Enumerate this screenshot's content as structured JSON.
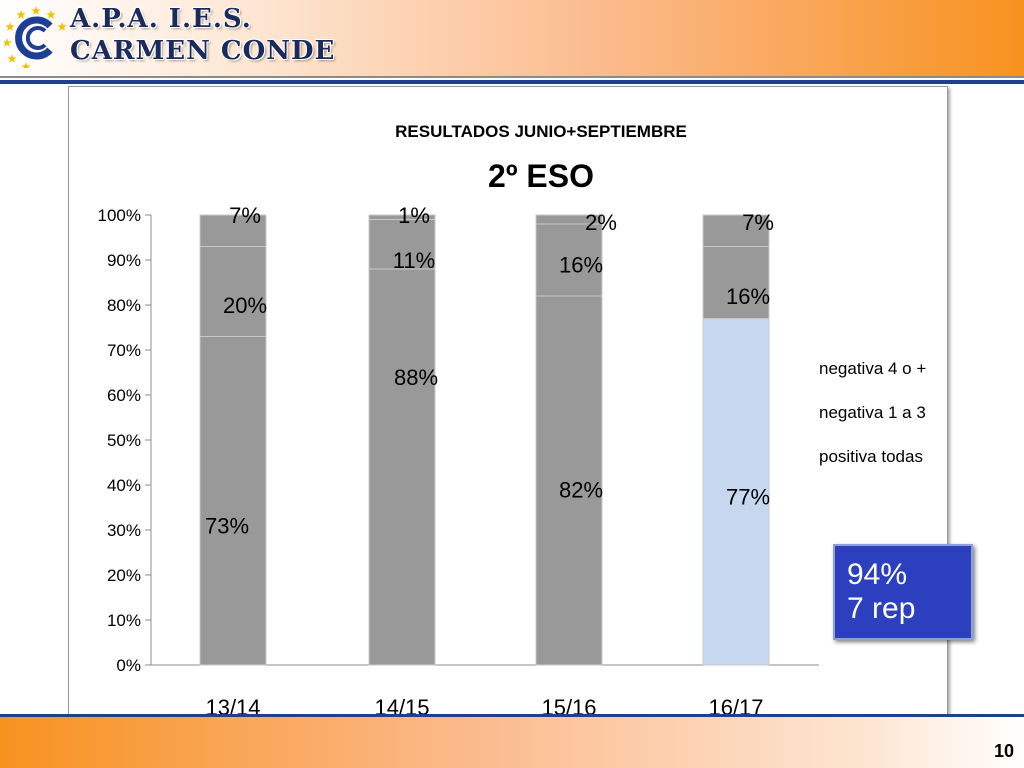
{
  "header": {
    "org_line1": "A.P.A.  I.E.S.",
    "org_line2": "CARMEN CONDE"
  },
  "footer": {
    "page_number": "10"
  },
  "callout": {
    "line1": "94%",
    "line2": "7 rep",
    "background": "#2b3fbf"
  },
  "colors": {
    "header_orange": "#f7921f",
    "rule_blue": "#1f3f8f",
    "bar_grey": "#999999",
    "bar_highlight": "#c5d8f0"
  },
  "chart_data": {
    "type": "bar",
    "stacked": true,
    "title": "RESULTADOS JUNIO+SEPTIEMBRE",
    "subtitle": "2º ESO",
    "categories": [
      "13/14",
      "14/15",
      "15/16",
      "16/17"
    ],
    "highlight_category": "16/17",
    "series": [
      {
        "name": "positiva todas",
        "values": [
          73,
          88,
          82,
          77
        ],
        "labels": [
          "73%",
          "88%",
          "82%",
          "77%"
        ]
      },
      {
        "name": "negativa 1 a 3",
        "values": [
          20,
          11,
          16,
          16
        ],
        "labels": [
          "20%",
          "11%",
          "16%",
          "16%"
        ]
      },
      {
        "name": "negativa 4 o +",
        "values": [
          7,
          1,
          2,
          7
        ],
        "labels": [
          "7%",
          "1%",
          "2%",
          "7%"
        ]
      }
    ],
    "ylim": [
      0,
      100
    ],
    "yticks": [
      "0%",
      "10%",
      "20%",
      "30%",
      "40%",
      "50%",
      "60%",
      "70%",
      "80%",
      "90%",
      "100%"
    ],
    "legend_position": "right",
    "legend": [
      "negativa 4 o +",
      "negativa 1 a 3",
      "positiva todas"
    ],
    "grid": false
  }
}
